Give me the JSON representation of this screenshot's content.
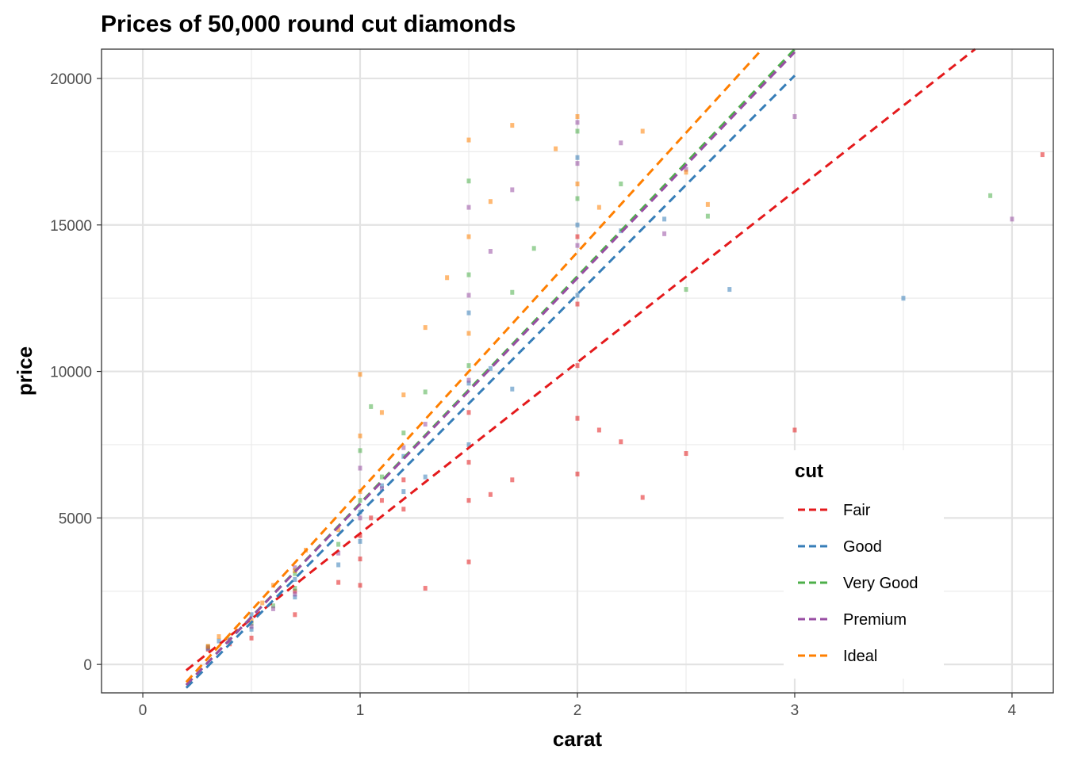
{
  "chart_data": {
    "type": "scatter",
    "title": "Prices of 50,000 round cut diamonds",
    "xlabel": "carat",
    "ylabel": "price",
    "xlim": [
      -0.19,
      4.19
    ],
    "ylim": [
      -970,
      21000
    ],
    "x_ticks": [
      0,
      1,
      2,
      3,
      4
    ],
    "x_tick_labels": [
      "0",
      "1",
      "2",
      "3",
      "4"
    ],
    "y_ticks": [
      0,
      5000,
      10000,
      15000,
      20000
    ],
    "y_tick_labels": [
      "0",
      "5000",
      "10000",
      "15000",
      "20000"
    ],
    "grid": true,
    "legend": {
      "title": "cut",
      "position": "bottom-right inside plot"
    },
    "series": [
      {
        "name": "Fair",
        "color": "#E41A1C",
        "trend_line": {
          "x": [
            0.2,
            3.83
          ],
          "y": [
            -200,
            21000
          ]
        },
        "points": [
          [
            0.3,
            520
          ],
          [
            0.4,
            700
          ],
          [
            0.5,
            900
          ],
          [
            0.7,
            1700
          ],
          [
            0.7,
            2500
          ],
          [
            0.9,
            2800
          ],
          [
            1.0,
            2700
          ],
          [
            1.0,
            3600
          ],
          [
            1.0,
            4400
          ],
          [
            1.05,
            5000
          ],
          [
            1.1,
            5600
          ],
          [
            1.2,
            5300
          ],
          [
            1.2,
            6300
          ],
          [
            1.3,
            2600
          ],
          [
            1.5,
            3500
          ],
          [
            1.5,
            5600
          ],
          [
            1.5,
            6900
          ],
          [
            1.5,
            8600
          ],
          [
            1.6,
            5800
          ],
          [
            1.7,
            6300
          ],
          [
            2.0,
            6500
          ],
          [
            2.0,
            8400
          ],
          [
            2.0,
            10200
          ],
          [
            2.0,
            12300
          ],
          [
            2.0,
            14600
          ],
          [
            2.1,
            8000
          ],
          [
            2.2,
            7600
          ],
          [
            2.3,
            5700
          ],
          [
            2.5,
            7200
          ],
          [
            3.0,
            8000
          ],
          [
            4.14,
            17400
          ]
        ]
      },
      {
        "name": "Good",
        "color": "#377EB8",
        "trend_line": {
          "x": [
            0.2,
            3.0
          ],
          "y": [
            -800,
            20100
          ]
        },
        "points": [
          [
            0.3,
            550
          ],
          [
            0.35,
            800
          ],
          [
            0.5,
            1200
          ],
          [
            0.5,
            1700
          ],
          [
            0.7,
            2300
          ],
          [
            0.7,
            2900
          ],
          [
            0.9,
            3400
          ],
          [
            1.0,
            4200
          ],
          [
            1.0,
            5200
          ],
          [
            1.1,
            6100
          ],
          [
            1.2,
            5900
          ],
          [
            1.2,
            7100
          ],
          [
            1.3,
            6400
          ],
          [
            1.5,
            7500
          ],
          [
            1.5,
            9600
          ],
          [
            1.5,
            12000
          ],
          [
            1.6,
            10100
          ],
          [
            1.7,
            9400
          ],
          [
            2.0,
            12600
          ],
          [
            2.0,
            15000
          ],
          [
            2.0,
            17300
          ],
          [
            2.2,
            14800
          ],
          [
            2.4,
            15200
          ],
          [
            2.7,
            12800
          ],
          [
            3.5,
            12500
          ]
        ]
      },
      {
        "name": "Very Good",
        "color": "#4DAF4A",
        "trend_line": {
          "x": [
            0.2,
            3.0
          ],
          "y": [
            -700,
            21000
          ]
        },
        "points": [
          [
            0.3,
            600
          ],
          [
            0.4,
            850
          ],
          [
            0.5,
            1400
          ],
          [
            0.6,
            2000
          ],
          [
            0.7,
            2600
          ],
          [
            0.7,
            3100
          ],
          [
            0.9,
            4100
          ],
          [
            1.0,
            5600
          ],
          [
            1.0,
            7300
          ],
          [
            1.05,
            8800
          ],
          [
            1.1,
            6400
          ],
          [
            1.2,
            7900
          ],
          [
            1.3,
            9300
          ],
          [
            1.5,
            10200
          ],
          [
            1.5,
            13300
          ],
          [
            1.5,
            16500
          ],
          [
            1.7,
            12700
          ],
          [
            1.8,
            14200
          ],
          [
            2.0,
            15900
          ],
          [
            2.0,
            18200
          ],
          [
            2.2,
            16400
          ],
          [
            2.5,
            12800
          ],
          [
            2.6,
            15300
          ],
          [
            3.9,
            16000
          ]
        ]
      },
      {
        "name": "Premium",
        "color": "#984EA3",
        "trend_line": {
          "x": [
            0.2,
            3.0
          ],
          "y": [
            -700,
            20900
          ]
        },
        "points": [
          [
            0.3,
            580
          ],
          [
            0.4,
            820
          ],
          [
            0.5,
            1300
          ],
          [
            0.6,
            1900
          ],
          [
            0.7,
            2400
          ],
          [
            0.7,
            3300
          ],
          [
            0.9,
            3800
          ],
          [
            1.0,
            5000
          ],
          [
            1.0,
            6700
          ],
          [
            1.1,
            6000
          ],
          [
            1.2,
            7400
          ],
          [
            1.3,
            8200
          ],
          [
            1.5,
            9700
          ],
          [
            1.5,
            12600
          ],
          [
            1.5,
            15600
          ],
          [
            1.6,
            14100
          ],
          [
            1.7,
            16200
          ],
          [
            2.0,
            14300
          ],
          [
            2.0,
            17100
          ],
          [
            2.0,
            18500
          ],
          [
            2.2,
            17800
          ],
          [
            2.4,
            14700
          ],
          [
            2.5,
            16900
          ],
          [
            3.0,
            18700
          ],
          [
            4.0,
            15200
          ]
        ]
      },
      {
        "name": "Ideal",
        "color": "#FF7F00",
        "trend_line": {
          "x": [
            0.2,
            2.85
          ],
          "y": [
            -600,
            21000
          ]
        },
        "points": [
          [
            0.3,
            620
          ],
          [
            0.35,
            950
          ],
          [
            0.5,
            1500
          ],
          [
            0.55,
            2100
          ],
          [
            0.6,
            2700
          ],
          [
            0.7,
            3200
          ],
          [
            0.75,
            3900
          ],
          [
            0.9,
            4600
          ],
          [
            1.0,
            5900
          ],
          [
            1.0,
            7800
          ],
          [
            1.0,
            9900
          ],
          [
            1.1,
            8600
          ],
          [
            1.2,
            9200
          ],
          [
            1.3,
            11500
          ],
          [
            1.4,
            13200
          ],
          [
            1.5,
            11300
          ],
          [
            1.5,
            14600
          ],
          [
            1.5,
            17900
          ],
          [
            1.6,
            15800
          ],
          [
            1.7,
            18400
          ],
          [
            1.9,
            17600
          ],
          [
            2.0,
            16400
          ],
          [
            2.0,
            18700
          ],
          [
            2.1,
            15600
          ],
          [
            2.3,
            18200
          ],
          [
            2.5,
            16800
          ],
          [
            2.6,
            15700
          ]
        ]
      }
    ]
  }
}
